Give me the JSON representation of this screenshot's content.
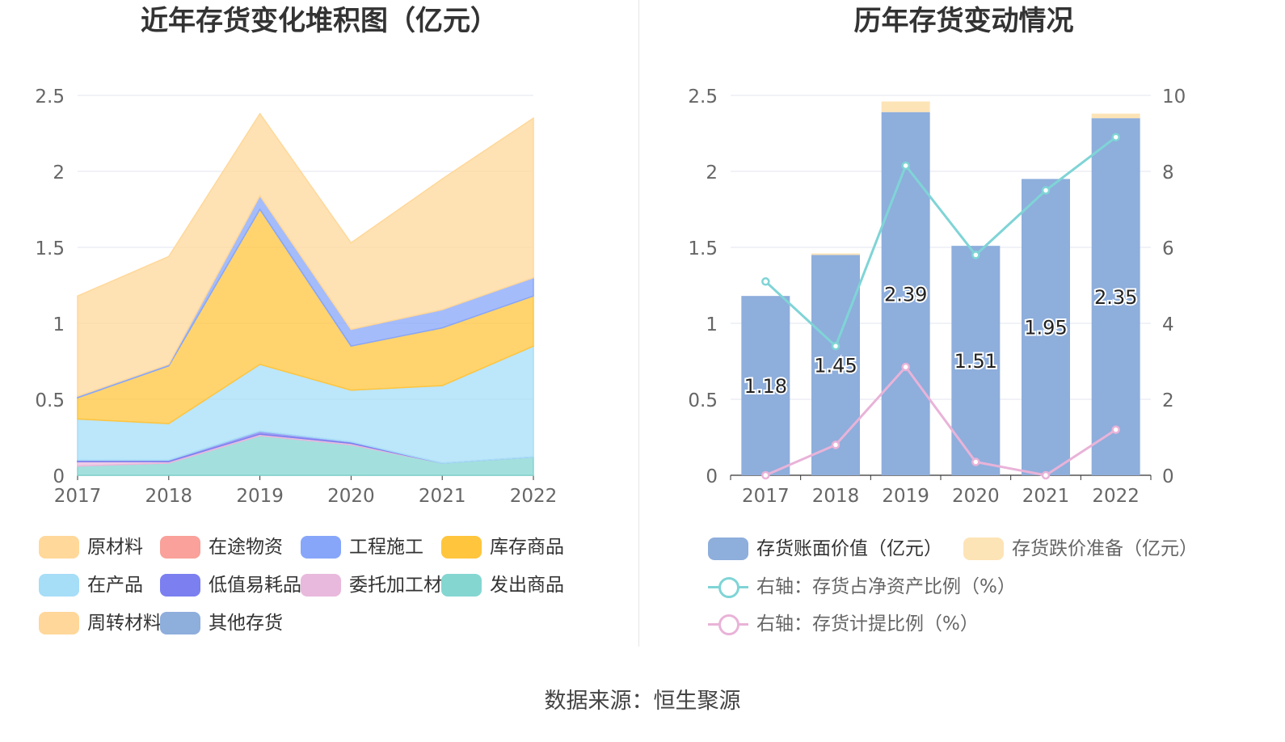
{
  "page": {
    "source": "数据来源：恒生聚源"
  },
  "colors": {
    "raw": "#ffd89a",
    "transit": "#f9a19a",
    "construction": "#87a6fa",
    "goods": "#ffc53d",
    "wip": "#a6ddf7",
    "low_value": "#7b7ff0",
    "consigned": "#e8b9dc",
    "issued": "#84d6d1",
    "turnover": "#ffd79a",
    "other": "#8eaedc",
    "book_value_bar": "#8eaedc",
    "provision_bar": "#fde4b6",
    "ratio_net_asset_line": "#7fd4d6",
    "ratio_provision_line": "#e9b3d8"
  },
  "chart_data": [
    {
      "type": "area",
      "title": "近年存货变化堆积图（亿元）",
      "categories": [
        "2017",
        "2018",
        "2019",
        "2020",
        "2021",
        "2022"
      ],
      "ylim": [
        0,
        2.5
      ],
      "yticks": [
        "0",
        "0.5",
        "1",
        "1.5",
        "2",
        "2.5"
      ],
      "grid": true,
      "legend_position": "bottom",
      "stacked": true,
      "series": [
        {
          "name": "发出商品",
          "key": "issued",
          "values": [
            0.06,
            0.08,
            0.26,
            0.2,
            0.08,
            0.12
          ]
        },
        {
          "name": "委托加工材料",
          "key": "consigned",
          "values": [
            0.03,
            0.01,
            0.01,
            0.01,
            0.0,
            0.0
          ]
        },
        {
          "name": "低值易耗品",
          "key": "low_value",
          "values": [
            0.01,
            0.01,
            0.02,
            0.01,
            0.0,
            0.0
          ]
        },
        {
          "name": "在产品",
          "key": "wip",
          "values": [
            0.27,
            0.24,
            0.44,
            0.34,
            0.51,
            0.73
          ]
        },
        {
          "name": "库存商品",
          "key": "goods",
          "values": [
            0.14,
            0.38,
            1.02,
            0.29,
            0.38,
            0.33
          ]
        },
        {
          "name": "工程施工",
          "key": "construction",
          "values": [
            0.01,
            0.01,
            0.09,
            0.11,
            0.12,
            0.12
          ]
        },
        {
          "name": "在途物资",
          "key": "transit",
          "values": [
            0.0,
            0.0,
            0.0,
            0.0,
            0.0,
            0.0
          ]
        },
        {
          "name": "周转材料",
          "key": "turnover",
          "values": [
            0.0,
            0.0,
            0.0,
            0.0,
            0.0,
            0.0
          ]
        },
        {
          "name": "其他存货",
          "key": "other",
          "values": [
            0.0,
            0.0,
            0.0,
            0.0,
            0.0,
            0.0
          ]
        },
        {
          "name": "原材料",
          "key": "raw",
          "values": [
            0.66,
            0.71,
            0.54,
            0.57,
            0.86,
            1.05
          ]
        }
      ],
      "legend": [
        {
          "name": "原材料",
          "key": "raw"
        },
        {
          "name": "在途物资",
          "key": "transit"
        },
        {
          "name": "工程施工",
          "key": "construction"
        },
        {
          "name": "库存商品",
          "key": "goods"
        },
        {
          "name": "在产品",
          "key": "wip"
        },
        {
          "name": "低值易耗品",
          "key": "low_value"
        },
        {
          "name": "委托加工材料",
          "key": "consigned"
        },
        {
          "name": "发出商品",
          "key": "issued"
        },
        {
          "name": "周转材料",
          "key": "turnover"
        },
        {
          "name": "其他存货",
          "key": "other"
        }
      ]
    },
    {
      "type": "bar",
      "title": "历年存货变动情况",
      "categories": [
        "2017",
        "2018",
        "2019",
        "2020",
        "2021",
        "2022"
      ],
      "ylim": [
        0,
        2.5
      ],
      "yticks": [
        "0",
        "0.5",
        "1",
        "1.5",
        "2",
        "2.5"
      ],
      "y2lim": [
        0,
        10
      ],
      "y2ticks": [
        "0",
        "2",
        "4",
        "6",
        "8",
        "10"
      ],
      "grid": true,
      "legend_position": "bottom",
      "series": [
        {
          "name": "存货账面价值（亿元）",
          "type": "bar",
          "axis": "left",
          "key": "book_value_bar",
          "values": [
            1.18,
            1.45,
            2.39,
            1.51,
            1.95,
            2.35
          ],
          "labels": [
            "1.18",
            "1.45",
            "2.39",
            "1.51",
            "1.95",
            "2.35"
          ]
        },
        {
          "name": "存货跌价准备（亿元）",
          "type": "bar",
          "axis": "left",
          "key": "provision_bar",
          "values": [
            0.0,
            0.01,
            0.07,
            0.0,
            0.0,
            0.03
          ]
        },
        {
          "name": "右轴：存货占净资产比例（%）",
          "type": "line",
          "axis": "right",
          "key": "ratio_net_asset_line",
          "values": [
            5.1,
            3.4,
            8.15,
            5.8,
            7.5,
            8.9
          ]
        },
        {
          "name": "右轴：存货计提比例（%）",
          "type": "line",
          "axis": "right",
          "key": "ratio_provision_line",
          "values": [
            0.0,
            0.8,
            2.85,
            0.35,
            0.0,
            1.2
          ]
        }
      ]
    }
  ]
}
